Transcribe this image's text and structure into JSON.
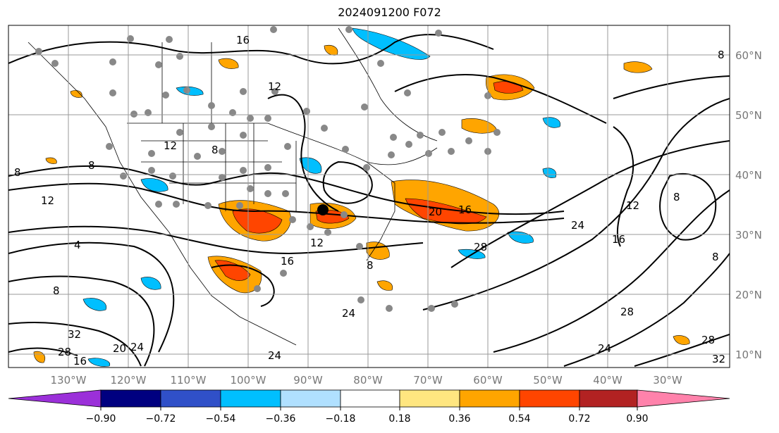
{
  "title": "2024091200 F072",
  "map": {
    "lon_labels": [
      "130°W",
      "120°W",
      "110°W",
      "100°W",
      "90°W",
      "80°W",
      "70°W",
      "60°W",
      "50°W",
      "40°W",
      "30°W"
    ],
    "lat_labels": [
      "60°N",
      "50°N",
      "40°N",
      "30°N",
      "20°N",
      "10°N"
    ],
    "contour_labels": [
      "16",
      "12",
      "12",
      "8",
      "8",
      "8",
      "12",
      "4",
      "8",
      "32",
      "28",
      "16",
      "20",
      "24",
      "24",
      "24",
      "20",
      "16",
      "24",
      "28",
      "16",
      "12",
      "8",
      "8",
      "8",
      "28",
      "24",
      "28",
      "32",
      "16",
      "12",
      "8"
    ],
    "gridline_color": "#999999",
    "contour_color": "#000000"
  },
  "colorbar": {
    "ticks": [
      "−0.90",
      "−0.72",
      "−0.54",
      "−0.36",
      "−0.18",
      "0.18",
      "0.36",
      "0.54",
      "0.72",
      "0.90"
    ],
    "colors": [
      "#9b30d9",
      "#000080",
      "#3050c8",
      "#00bfff",
      "#b0e0ff",
      "#ffffff",
      "#ffe680",
      "#ffa500",
      "#ff4500",
      "#b22222",
      "#ff82ab"
    ]
  }
}
